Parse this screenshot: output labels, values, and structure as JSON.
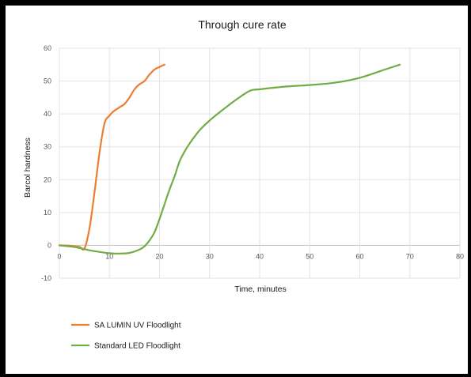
{
  "chart_data": {
    "type": "line",
    "title": "Through cure rate",
    "xlabel": "Time, minutes",
    "ylabel": "Barcol hardness",
    "xlim": [
      0,
      80
    ],
    "ylim": [
      -10,
      60
    ],
    "xticks": [
      0,
      10,
      20,
      30,
      40,
      50,
      60,
      70,
      80
    ],
    "yticks": [
      -10,
      0,
      10,
      20,
      30,
      40,
      50,
      60
    ],
    "grid": true,
    "legend_position": "bottom-left",
    "series": [
      {
        "name": "SA LUMIN UV Floodlight",
        "color": "#ED7D31",
        "x": [
          0,
          2,
          4,
          5,
          6,
          7,
          8,
          9,
          10,
          11,
          12,
          13,
          14,
          15,
          16,
          17,
          18,
          19,
          20,
          21
        ],
        "y": [
          0,
          -0.1,
          -0.5,
          -1,
          5,
          16,
          28,
          37,
          39.5,
          41,
          42,
          43,
          45,
          47.5,
          49,
          50,
          52,
          53.5,
          54.3,
          55
        ]
      },
      {
        "name": "Standard LED Floodlight",
        "color": "#70AD47",
        "x": [
          0,
          3,
          6,
          8,
          10,
          12,
          14,
          16,
          17,
          18,
          19,
          20,
          21,
          22,
          23,
          24,
          25,
          26,
          28,
          30,
          32,
          35,
          38,
          40,
          45,
          50,
          55,
          60,
          65,
          68
        ],
        "y": [
          0,
          -0.5,
          -1.5,
          -2,
          -2.4,
          -2.5,
          -2.3,
          -1.3,
          -0.3,
          1.5,
          4,
          8,
          12.5,
          17,
          21,
          25.5,
          28.5,
          31,
          35,
          38,
          40.5,
          44,
          47,
          47.5,
          48.3,
          48.8,
          49.5,
          51,
          53.5,
          55
        ]
      }
    ]
  }
}
